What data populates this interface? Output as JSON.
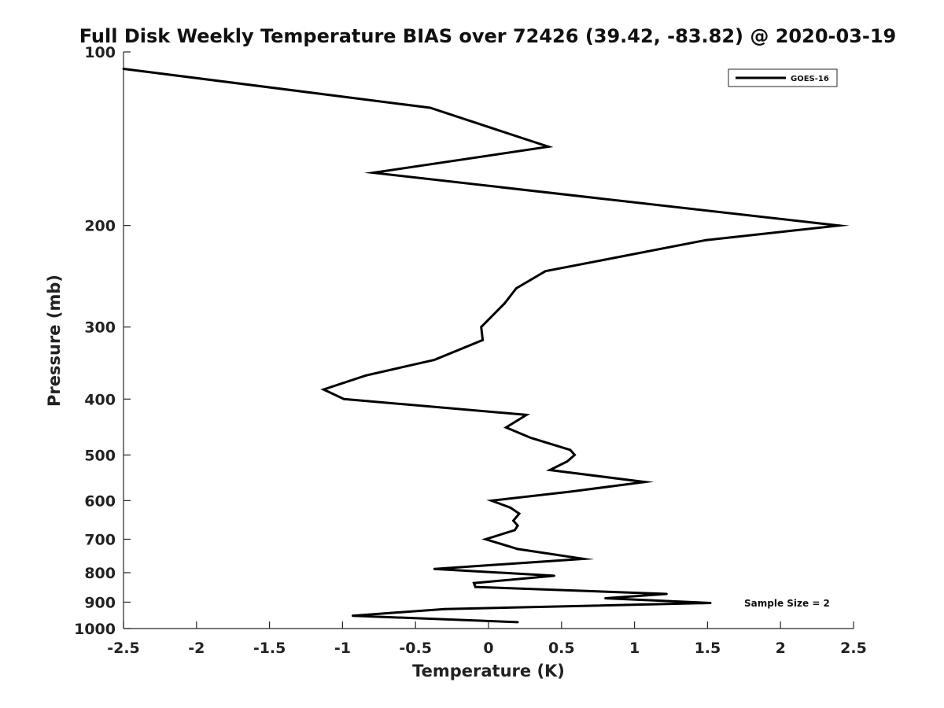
{
  "chart_data": {
    "type": "line",
    "title": "Full Disk Weekly Temperature BIAS over 72426 (39.42, -83.82) @ 2020-03-19",
    "xlabel": "Temperature (K)",
    "ylabel": "Pressure (mb)",
    "xlim": [
      -2.5,
      2.5
    ],
    "ylim": [
      100,
      1000
    ],
    "y_scale": "log",
    "y_reversed": true,
    "grid": false,
    "legend_position": "top-right",
    "x_ticks": [
      "-2.5",
      "-2",
      "-1.5",
      "-1",
      "-0.5",
      "0",
      "0.5",
      "1",
      "1.5",
      "2",
      "2.5"
    ],
    "y_ticks": [
      "100",
      "200",
      "300",
      "400",
      "500",
      "600",
      "700",
      "800",
      "900",
      "1000"
    ],
    "annotation": "Sample Size = 2",
    "series": [
      {
        "name": "GOES-16",
        "color": "#000000",
        "points": [
          {
            "x": -2.5,
            "y": 107
          },
          {
            "x": -0.4,
            "y": 125
          },
          {
            "x": 0.41,
            "y": 146
          },
          {
            "x": -0.79,
            "y": 162
          },
          {
            "x": 2.4,
            "y": 200
          },
          {
            "x": 1.49,
            "y": 212
          },
          {
            "x": 0.39,
            "y": 240
          },
          {
            "x": 0.19,
            "y": 257
          },
          {
            "x": 0.11,
            "y": 273
          },
          {
            "x": -0.05,
            "y": 300
          },
          {
            "x": -0.04,
            "y": 316
          },
          {
            "x": -0.37,
            "y": 342
          },
          {
            "x": -0.84,
            "y": 364
          },
          {
            "x": -1.13,
            "y": 385
          },
          {
            "x": -0.99,
            "y": 400
          },
          {
            "x": 0.26,
            "y": 426
          },
          {
            "x": 0.12,
            "y": 448
          },
          {
            "x": 0.29,
            "y": 467
          },
          {
            "x": 0.56,
            "y": 490
          },
          {
            "x": 0.59,
            "y": 500
          },
          {
            "x": 0.54,
            "y": 513
          },
          {
            "x": 0.42,
            "y": 531
          },
          {
            "x": 1.07,
            "y": 557
          },
          {
            "x": 0.56,
            "y": 579
          },
          {
            "x": 0.02,
            "y": 600
          },
          {
            "x": 0.15,
            "y": 617
          },
          {
            "x": 0.21,
            "y": 632
          },
          {
            "x": 0.17,
            "y": 650
          },
          {
            "x": 0.2,
            "y": 663
          },
          {
            "x": 0.18,
            "y": 675
          },
          {
            "x": -0.02,
            "y": 700
          },
          {
            "x": 0.2,
            "y": 728
          },
          {
            "x": 0.65,
            "y": 757
          },
          {
            "x": -0.37,
            "y": 788
          },
          {
            "x": 0.45,
            "y": 810
          },
          {
            "x": -0.1,
            "y": 834
          },
          {
            "x": -0.09,
            "y": 847
          },
          {
            "x": 1.22,
            "y": 871
          },
          {
            "x": 0.8,
            "y": 886
          },
          {
            "x": 1.52,
            "y": 903
          },
          {
            "x": -0.3,
            "y": 925
          },
          {
            "x": -0.93,
            "y": 950
          },
          {
            "x": 0.2,
            "y": 975
          }
        ]
      }
    ]
  }
}
